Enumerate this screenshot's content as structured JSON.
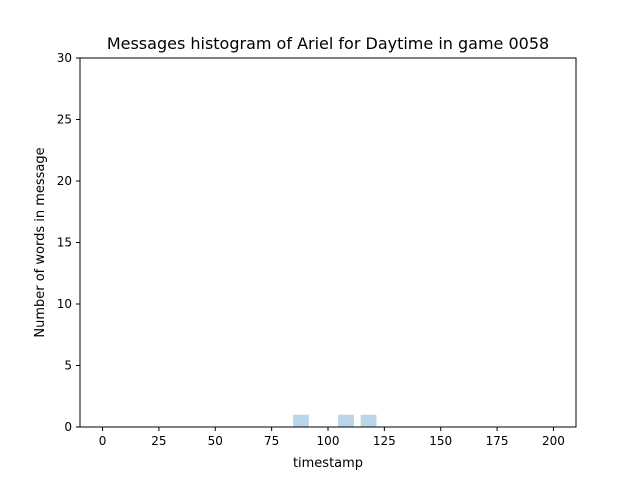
{
  "chart_data": {
    "type": "bar",
    "title": "Messages histogram of Ariel for Daytime in game 0058",
    "xlabel": "timestamp",
    "ylabel": "Number of words in message",
    "xlim": [
      -10,
      210
    ],
    "ylim": [
      0,
      30
    ],
    "x_ticks": [
      0,
      25,
      50,
      75,
      100,
      125,
      150,
      175,
      200
    ],
    "y_ticks": [
      0,
      5,
      10,
      15,
      20,
      25,
      30
    ],
    "bar_width": 7,
    "bars": [
      {
        "x": 88,
        "value": 1
      },
      {
        "x": 108,
        "value": 1
      },
      {
        "x": 118,
        "value": 1
      }
    ],
    "bar_color": "#1f77b4",
    "bar_opacity": 0.3,
    "grid": false,
    "legend": "none"
  }
}
